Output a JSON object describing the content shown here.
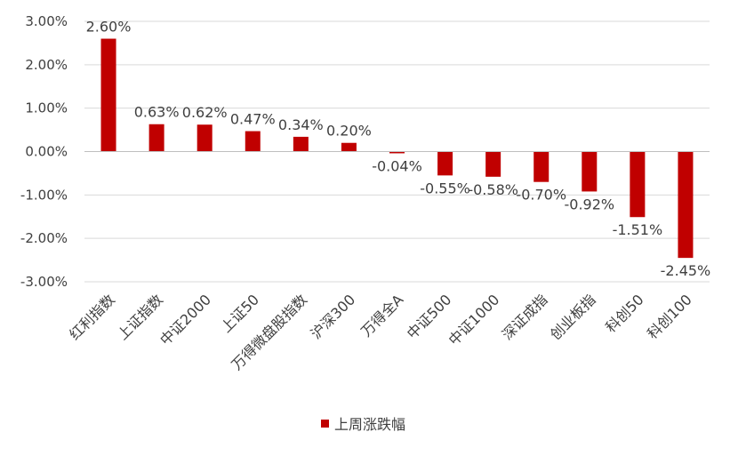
{
  "chart_data": {
    "type": "bar",
    "title": "",
    "xlabel": "",
    "ylabel": "",
    "categories": [
      "红利指数",
      "上证指数",
      "中证2000",
      "上证50",
      "万得微盘股指数",
      "沪深300",
      "万得全A",
      "中证500",
      "中证1000",
      "深证成指",
      "创业板指",
      "科创50",
      "科创100"
    ],
    "series": [
      {
        "name": "上周涨跌幅",
        "values": [
          2.6,
          0.63,
          0.62,
          0.47,
          0.34,
          0.2,
          -0.04,
          -0.55,
          -0.58,
          -0.7,
          -0.92,
          -1.51,
          -2.45
        ],
        "labels": [
          "2.60%",
          "0.63%",
          "0.62%",
          "0.47%",
          "0.34%",
          "0.20%",
          "-0.04%",
          "-0.55%",
          "-0.58%",
          "-0.70%",
          "-0.92%",
          "-1.51%",
          "-2.45%"
        ],
        "color": "#C00000"
      }
    ],
    "ylim": [
      -3.0,
      3.0
    ],
    "yticks": [
      3.0,
      2.0,
      1.0,
      0.0,
      -1.0,
      -2.0,
      -3.0
    ],
    "ytick_labels": [
      "3.00%",
      "2.00%",
      "1.00%",
      "0.00%",
      "-1.00%",
      "-2.00%",
      "-3.00%"
    ],
    "grid": true,
    "legend_position": "bottom",
    "colors": {
      "gridline": "#D9D9D9",
      "axis": "#BFBFBF",
      "text": "#404040"
    }
  }
}
